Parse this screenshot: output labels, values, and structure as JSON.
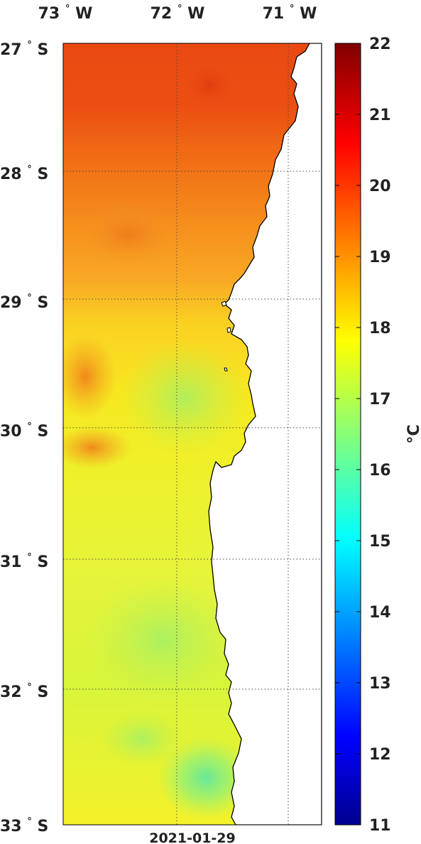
{
  "map": {
    "date": "2021-01-29",
    "lon_labels": [
      "73",
      "72",
      "71"
    ],
    "lon_suffix": "W",
    "lat_labels": [
      "27",
      "28",
      "29",
      "30",
      "31",
      "32",
      "33"
    ],
    "lat_suffix": "S",
    "degree_symbol": "°",
    "land_color": "#ffffff",
    "coast_color": "#000000",
    "grid_style": "dotted",
    "lon_range": [
      -73.0,
      -70.7
    ],
    "lat_range": [
      -33.0,
      -27.0
    ]
  },
  "colorbar": {
    "min": 11,
    "max": 22,
    "ticks": [
      "11",
      "12",
      "13",
      "14",
      "15",
      "16",
      "17",
      "18",
      "19",
      "20",
      "21",
      "22"
    ],
    "unit": "°C",
    "colormap": "jet"
  }
}
